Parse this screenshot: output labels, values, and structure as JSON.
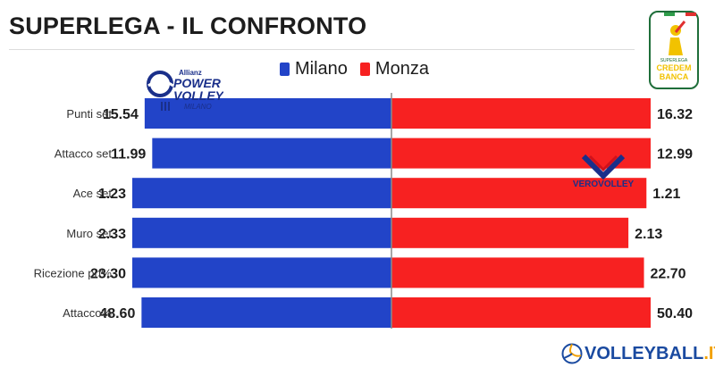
{
  "header": {
    "title": "SUPERLEGA - IL CONFRONTO"
  },
  "legend": {
    "items": [
      {
        "label": "Milano",
        "color": "#2244c8"
      },
      {
        "label": "Monza",
        "color": "#f72121"
      }
    ]
  },
  "logos": {
    "milano": {
      "line1": "Allianz",
      "line2": "POWER",
      "line3": "VOLLEY",
      "line4": "MILANO"
    },
    "verovolley": {
      "text": "VEROVOLLEY"
    },
    "superlega": {
      "line1": "SUPERLEGA",
      "line2": "CREDEM",
      "line3": "BANCA"
    },
    "volleyball_it": {
      "main": "VOLLEYBALL",
      "accent": ".IT"
    }
  },
  "chart_data": {
    "type": "bar",
    "orientation": "diverging-horizontal",
    "categories": [
      "Punti set",
      "Attacco set",
      "Ace set",
      "Muro set",
      "Ricezione prf%",
      "Attacco%"
    ],
    "series": [
      {
        "name": "Milano",
        "color": "#2244c8",
        "side": "left",
        "values": [
          15.54,
          11.99,
          1.23,
          2.33,
          23.3,
          48.6
        ],
        "labels": [
          "15.54",
          "11.99",
          "1.23",
          "2.33",
          "23.30",
          "48.60"
        ]
      },
      {
        "name": "Monza",
        "color": "#f72121",
        "side": "right",
        "values": [
          16.32,
          12.99,
          1.21,
          2.13,
          22.7,
          50.4
        ],
        "labels": [
          "16.32",
          "12.99",
          "1.21",
          "2.13",
          "22.70",
          "50.40"
        ]
      }
    ],
    "scale": "per-category (bars normalized against the larger of the two values in each row)",
    "grid": false,
    "legend_position": "top-center"
  }
}
